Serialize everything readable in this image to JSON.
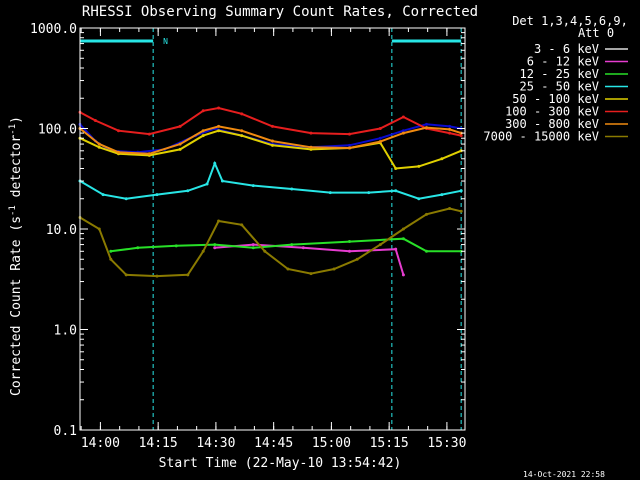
{
  "chart_data": {
    "type": "line",
    "title": "RHESSI Observing Summary Count Rates, Corrected",
    "xlabel": "Start Time (22-May-10 13:54:42)",
    "ylabel_main": "Corrected Count Rate (s",
    "ylabel_sup1": "-1",
    "ylabel_mid": " detector",
    "ylabel_sup2": "-1",
    "ylabel_end": ")",
    "yscale": "log",
    "ylim": [
      0.1,
      1000.0
    ],
    "xlim_minutes": [
      0,
      100
    ],
    "xticks": [
      {
        "label": "14:00",
        "minute": 5.3
      },
      {
        "label": "14:15",
        "minute": 20.3
      },
      {
        "label": "14:30",
        "minute": 35.3
      },
      {
        "label": "14:45",
        "minute": 50.3
      },
      {
        "label": "15:00",
        "minute": 65.3
      },
      {
        "label": "15:15",
        "minute": 80.3
      },
      {
        "label": "15:30",
        "minute": 95.3
      }
    ],
    "yticks": [
      {
        "label": "1000.0",
        "value": 1000
      },
      {
        "label": "100.0",
        "value": 100
      },
      {
        "label": "10.0",
        "value": 10
      },
      {
        "label": "1.0",
        "value": 1
      },
      {
        "label": "0.1",
        "value": 0.1
      }
    ],
    "legend_header_1": "Det 1,3,4,5,6,9,",
    "legend_header_2": "Att 0",
    "legend_placement": "right",
    "footer_date": "14-Oct-2021 22:58",
    "flag_label": "N",
    "night_bars": [
      [
        0,
        19
      ],
      [
        81,
        99
      ]
    ],
    "night_lines": [
      19,
      81,
      99
    ],
    "series": [
      {
        "name": "3 - 6 keV",
        "color": "#000000",
        "points": [
          [
            0,
            110
          ],
          [
            4,
            75
          ],
          [
            8,
            60
          ],
          [
            15,
            58
          ],
          [
            22,
            62
          ],
          [
            30,
            85
          ],
          [
            35,
            100
          ],
          [
            42,
            85
          ],
          [
            50,
            70
          ],
          [
            60,
            65
          ],
          [
            70,
            68
          ],
          [
            78,
            80
          ],
          [
            84,
            95
          ],
          [
            90,
            110
          ],
          [
            96,
            105
          ],
          [
            99,
            100
          ]
        ]
      },
      {
        "name": "6 - 12 keV",
        "color": "#e63cd0",
        "points": [
          [
            35,
            6.5
          ],
          [
            45,
            7
          ],
          [
            58,
            6.5
          ],
          [
            70,
            6
          ],
          [
            82,
            6.3
          ],
          [
            84,
            3.5
          ]
        ]
      },
      {
        "name": "12 - 25 keV",
        "color": "#28e028",
        "points": [
          [
            8,
            6
          ],
          [
            15,
            6.5
          ],
          [
            25,
            6.8
          ],
          [
            35,
            7
          ],
          [
            45,
            6.5
          ],
          [
            55,
            7
          ],
          [
            70,
            7.5
          ],
          [
            84,
            8
          ],
          [
            90,
            6
          ],
          [
            99,
            6
          ]
        ]
      },
      {
        "name": "25 - 50 keV",
        "color": "#28e6e6",
        "points": [
          [
            0,
            30
          ],
          [
            6,
            22
          ],
          [
            12,
            20
          ],
          [
            20,
            22
          ],
          [
            28,
            24
          ],
          [
            33,
            28
          ],
          [
            35,
            45
          ],
          [
            37,
            30
          ],
          [
            45,
            27
          ],
          [
            55,
            25
          ],
          [
            65,
            23
          ],
          [
            75,
            23
          ],
          [
            82,
            24
          ],
          [
            88,
            20
          ],
          [
            94,
            22
          ],
          [
            99,
            24
          ]
        ]
      },
      {
        "name": "50 - 100 keV",
        "color": "#e0d000",
        "points": [
          [
            0,
            80
          ],
          [
            5,
            65
          ],
          [
            10,
            56
          ],
          [
            18,
            54
          ],
          [
            26,
            62
          ],
          [
            32,
            85
          ],
          [
            36,
            95
          ],
          [
            42,
            85
          ],
          [
            50,
            68
          ],
          [
            60,
            62
          ],
          [
            70,
            64
          ],
          [
            78,
            72
          ],
          [
            82,
            40
          ],
          [
            88,
            42
          ],
          [
            94,
            50
          ],
          [
            99,
            60
          ]
        ]
      },
      {
        "name": "100 - 300 keV",
        "color": "#e61e1e",
        "points": [
          [
            0,
            145
          ],
          [
            4,
            120
          ],
          [
            10,
            95
          ],
          [
            18,
            88
          ],
          [
            26,
            105
          ],
          [
            32,
            150
          ],
          [
            36,
            160
          ],
          [
            42,
            140
          ],
          [
            50,
            105
          ],
          [
            60,
            90
          ],
          [
            70,
            88
          ],
          [
            78,
            100
          ],
          [
            84,
            130
          ],
          [
            90,
            100
          ],
          [
            96,
            90
          ],
          [
            99,
            85
          ]
        ]
      },
      {
        "name": "300 - 800 keV",
        "color": "#f08a10",
        "points": [
          [
            0,
            100
          ],
          [
            5,
            70
          ],
          [
            10,
            58
          ],
          [
            18,
            56
          ],
          [
            26,
            70
          ],
          [
            32,
            95
          ],
          [
            36,
            105
          ],
          [
            42,
            95
          ],
          [
            50,
            75
          ],
          [
            60,
            65
          ],
          [
            70,
            64
          ],
          [
            78,
            74
          ],
          [
            84,
            90
          ],
          [
            90,
            102
          ],
          [
            96,
            98
          ],
          [
            99,
            90
          ]
        ]
      },
      {
        "name": "7000 - 15000 keV",
        "color": "#8a7a00",
        "points": [
          [
            0,
            13
          ],
          [
            5,
            10
          ],
          [
            8,
            5
          ],
          [
            12,
            3.5
          ],
          [
            20,
            3.4
          ],
          [
            28,
            3.5
          ],
          [
            32,
            6
          ],
          [
            36,
            12
          ],
          [
            42,
            11
          ],
          [
            48,
            6
          ],
          [
            54,
            4
          ],
          [
            60,
            3.6
          ],
          [
            66,
            4
          ],
          [
            72,
            5
          ],
          [
            78,
            7
          ],
          [
            84,
            10
          ],
          [
            90,
            14
          ],
          [
            96,
            16
          ],
          [
            99,
            15
          ]
        ]
      }
    ]
  }
}
